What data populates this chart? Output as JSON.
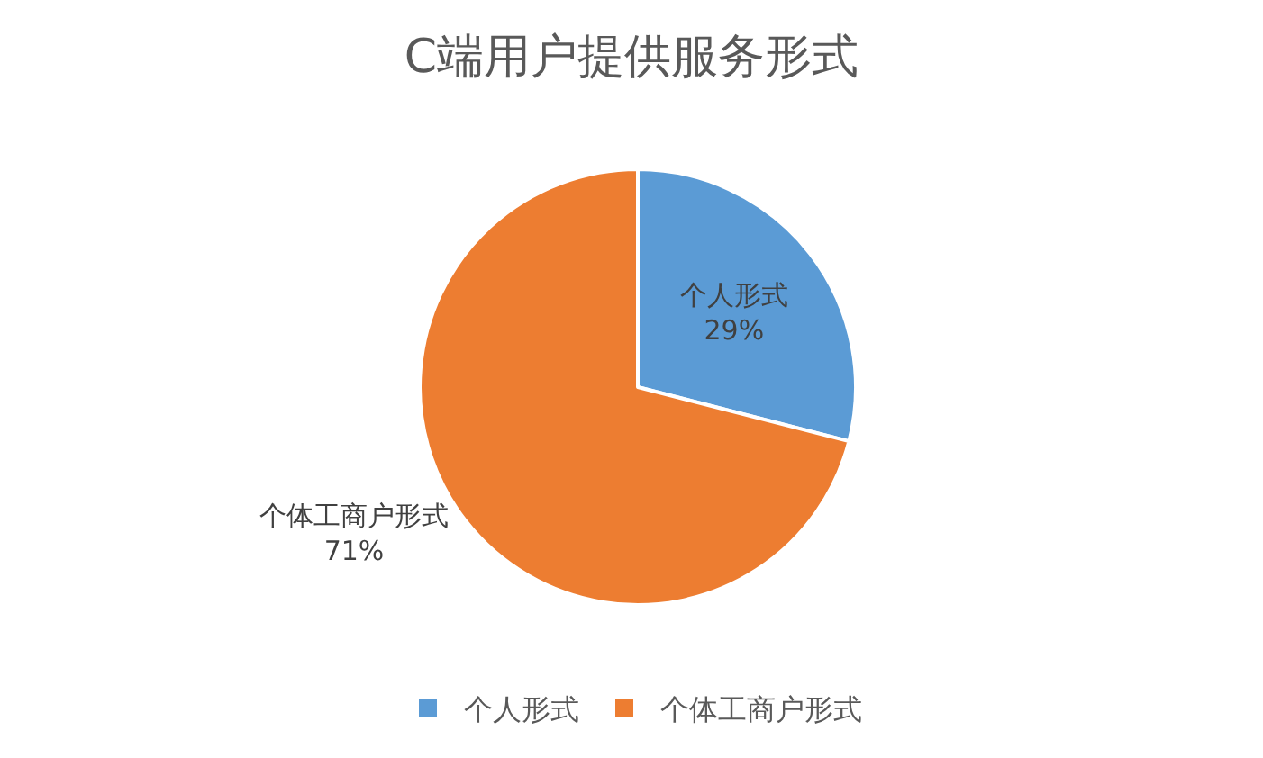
{
  "chart_data": {
    "type": "pie",
    "title": "C端用户提供服务形式",
    "categories": [
      "个人形式",
      "个体工商户形式"
    ],
    "values": [
      29,
      71
    ],
    "colors": [
      "#5b9bd5",
      "#ed7d31"
    ],
    "value_labels": [
      "29%",
      "71%"
    ],
    "legend": "bottom"
  }
}
